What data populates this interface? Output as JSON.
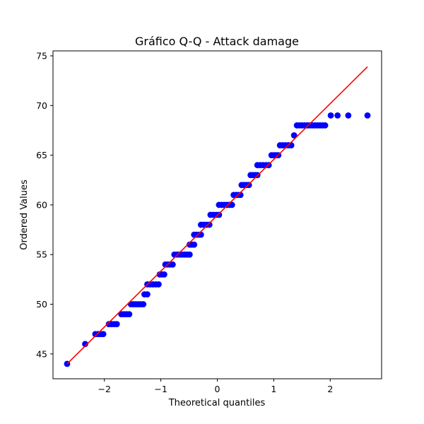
{
  "chart_data": {
    "type": "scatter",
    "title": "Gráfico Q-Q - Attack damage",
    "xlabel": "Theoretical quantiles",
    "ylabel": "Ordered Values",
    "xlim": [
      -2.91,
      2.91
    ],
    "ylim": [
      42.5,
      75.5
    ],
    "x_ticks": [
      -2,
      -1,
      0,
      1,
      2
    ],
    "x_tick_labels": [
      "−2",
      "−1",
      "0",
      "1",
      "2"
    ],
    "y_ticks": [
      45,
      50,
      55,
      60,
      65,
      70,
      75
    ],
    "y_tick_labels": [
      "45",
      "50",
      "55",
      "60",
      "65",
      "70",
      "75"
    ],
    "grid": false,
    "colors": {
      "points": "#0000ff",
      "fit_line": "#ff0000",
      "axes": "#000000"
    },
    "fit_line": {
      "x": [
        -2.66,
        2.66
      ],
      "y": [
        44.0,
        73.9
      ]
    },
    "groups": [
      {
        "value": 44,
        "x_start": -2.66,
        "x_end": -2.66
      },
      {
        "value": 46,
        "x_start": -2.34,
        "x_end": -2.34
      },
      {
        "value": 47,
        "x_start": -2.16,
        "x_end": -2.02
      },
      {
        "value": 48,
        "x_start": -1.92,
        "x_end": -1.78
      },
      {
        "value": 49,
        "x_start": -1.7,
        "x_end": -1.56
      },
      {
        "value": 50,
        "x_start": -1.53,
        "x_end": -1.31
      },
      {
        "value": 51,
        "x_start": -1.29,
        "x_end": -1.24
      },
      {
        "value": 52,
        "x_start": -1.24,
        "x_end": -1.04
      },
      {
        "value": 53,
        "x_start": -1.02,
        "x_end": -0.94
      },
      {
        "value": 54,
        "x_start": -0.92,
        "x_end": -0.79
      },
      {
        "value": 55,
        "x_start": -0.76,
        "x_end": -0.49
      },
      {
        "value": 56,
        "x_start": -0.49,
        "x_end": -0.41
      },
      {
        "value": 57,
        "x_start": -0.41,
        "x_end": -0.29
      },
      {
        "value": 58,
        "x_start": -0.29,
        "x_end": -0.14
      },
      {
        "value": 59,
        "x_start": -0.12,
        "x_end": 0.03
      },
      {
        "value": 60,
        "x_start": 0.03,
        "x_end": 0.26
      },
      {
        "value": 61,
        "x_start": 0.29,
        "x_end": 0.41
      },
      {
        "value": 62,
        "x_start": 0.43,
        "x_end": 0.56
      },
      {
        "value": 63,
        "x_start": 0.59,
        "x_end": 0.71
      },
      {
        "value": 64,
        "x_start": 0.71,
        "x_end": 0.91
      },
      {
        "value": 65,
        "x_start": 0.96,
        "x_end": 1.08
      },
      {
        "value": 66,
        "x_start": 1.11,
        "x_end": 1.31
      },
      {
        "value": 67,
        "x_start": 1.36,
        "x_end": 1.36
      },
      {
        "value": 68,
        "x_start": 1.41,
        "x_end": 1.91
      },
      {
        "value": 69,
        "x_start": 2.01,
        "x_end": 2.66,
        "x": [
          2.01,
          2.13,
          2.32,
          2.66
        ]
      }
    ]
  }
}
